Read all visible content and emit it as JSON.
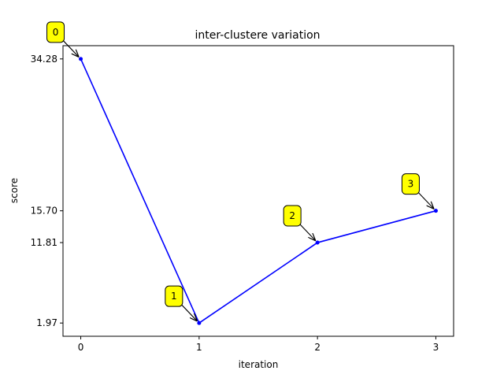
{
  "chart_data": {
    "type": "line",
    "title": "inter-clustere variation",
    "xlabel": "iteration",
    "ylabel": "score",
    "x": [
      0,
      1,
      2,
      3
    ],
    "x_ticks": [
      "0",
      "1",
      "2",
      "3"
    ],
    "y": [
      34.28,
      1.97,
      11.81,
      15.7
    ],
    "y_ticks": [
      "1.97",
      "11.81",
      "15.70",
      "34.28"
    ],
    "xlim": [
      -0.15,
      3.15
    ],
    "ylim": [
      0.35,
      35.9
    ],
    "annotations": [
      "0",
      "1",
      "2",
      "3"
    ],
    "grid": false,
    "line_color": "#0000ff",
    "annotation_fill": "#ffff00"
  }
}
